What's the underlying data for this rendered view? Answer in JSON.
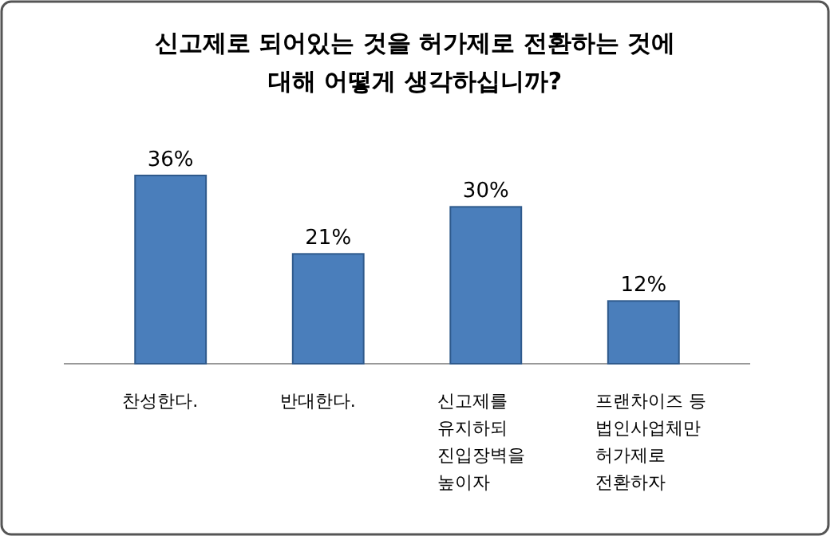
{
  "chart_data": {
    "type": "bar",
    "title": "신고제로 되어있는 것을 허가제로 전환하는 것에\n대해 어떻게 생각하십니까?",
    "categories": [
      "찬성한다.",
      "반대한다.",
      "신고제를\n유지하되\n진입장벽을\n높이자",
      "프랜차이즈 등\n법인사업체만\n허가제로\n전환하자"
    ],
    "values": [
      36,
      21,
      30,
      12
    ],
    "value_labels": [
      "36%",
      "21%",
      "30%",
      "12%"
    ],
    "color": "#4a7ebb"
  }
}
